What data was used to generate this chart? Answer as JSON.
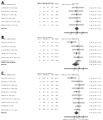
{
  "title_A": "A",
  "title_B": "B",
  "title_C": "C",
  "panel_A": {
    "studies": [
      {
        "name": "Cowling et al. 2008 [13]",
        "ev_t": 6,
        "tot_t": 103,
        "ev_c": 13,
        "tot_c": 106,
        "weight": "5.4%",
        "rr": 1.22,
        "ci_lo": 0.57,
        "ci_hi": 2.48
      },
      {
        "name": "Cowling et al. 2009 [15]",
        "ev_t": 9,
        "tot_t": 200,
        "ev_c": 10,
        "tot_c": 199,
        "weight": "4.4%",
        "rr": 0.93,
        "ci_lo": 0.37,
        "ci_hi": 2.33
      },
      {
        "name": "Larson et al. 2010 [16]",
        "ev_t": 17,
        "tot_t": 226,
        "ev_c": 17,
        "tot_c": 225,
        "weight": "8.3%",
        "rr": 1.0,
        "ci_lo": 0.52,
        "ci_hi": 1.92
      },
      {
        "name": "Patel et al. 2012 [18]",
        "ev_t": 11,
        "tot_t": 144,
        "ev_c": 14,
        "tot_c": 138,
        "weight": "6.7%",
        "rr": 0.75,
        "ci_lo": 0.36,
        "ci_hi": 1.57
      },
      {
        "name": "Simmerman et al. 2011 [19]",
        "ev_t": 45,
        "tot_t": 334,
        "ev_c": 39,
        "tot_c": 335,
        "weight": "19.2%",
        "rr": 1.16,
        "ci_lo": 0.77,
        "ci_hi": 1.73
      },
      {
        "name": "Stebbins et al. 2011 [14]",
        "ev_t": 9,
        "tot_t": 144,
        "ev_c": 9,
        "tot_c": 145,
        "weight": "4.4%",
        "rr": 1.01,
        "ci_lo": 0.4,
        "ci_hi": 2.54
      },
      {
        "name": "Pooled",
        "rr": 1.02,
        "ci_lo": 0.79,
        "ci_hi": 1.31,
        "weight": "100%",
        "is_pooled": true
      }
    ],
    "xticks": [
      0.5,
      1.0,
      2.0
    ],
    "xlim_lo": 0.2,
    "xlim_hi": 4.0
  },
  "panel_B": {
    "studies": [
      {
        "name": "Aiello et al. 2012 [20]",
        "ev_t": 17,
        "tot_t": 1441,
        "ev_c": 50,
        "tot_c": 1467,
        "weight": "28.1%",
        "rr": 0.35,
        "ci_lo": 0.17,
        "ci_hi": 0.72
      },
      {
        "name": "Rabie et al. 2012 [13]",
        "ev_t": 8,
        "tot_t": 1050,
        "ev_c": 10,
        "tot_c": 1050,
        "weight": "9.3%",
        "rr": 0.8,
        "ci_lo": 0.32,
        "ci_hi": 2.02
      },
      {
        "name": "Cowling et al. 2009 [15]",
        "ev_t": 9,
        "tot_t": 200,
        "ev_c": 10,
        "tot_c": 199,
        "weight": "10.4%",
        "rr": 0.9,
        "ci_lo": 0.38,
        "ci_hi": 2.14
      },
      {
        "name": "Larson et al. 2010 [16]",
        "ev_t": 24,
        "tot_t": 424,
        "ev_c": 32,
        "tot_c": 423,
        "weight": "29.3%",
        "rr": 0.75,
        "ci_lo": 0.45,
        "ci_hi": 1.24
      },
      {
        "name": "Simmerman et al. 2011 [19]",
        "ev_t": 13,
        "tot_t": 201,
        "ev_c": 14,
        "tot_c": 200,
        "weight": "13.0%",
        "rr": 0.92,
        "ci_lo": 0.44,
        "ci_hi": 1.93
      },
      {
        "name": "Barwise et al. 2011",
        "ev_t": 36,
        "tot_t": 301,
        "ev_c": 39,
        "tot_c": 301,
        "weight": "9.9%",
        "rr": 0.92,
        "ci_lo": 0.6,
        "ci_hi": 1.42
      },
      {
        "name": "Pooled",
        "rr": 0.62,
        "ci_lo": 0.36,
        "ci_hi": 1.06,
        "weight": "100%",
        "is_pooled": true
      }
    ],
    "xticks": [
      0.5,
      1.0,
      2.0
    ],
    "xlim_lo": 0.1,
    "xlim_hi": 4.0,
    "fixed_effect": true,
    "fixed_rr": 0.71,
    "fixed_lo": 0.55,
    "fixed_hi": 0.93
  },
  "panel_C": {
    "studies": [
      {
        "name": "Aiello et al. 2012 [20]",
        "ev_t": 17,
        "tot_t": 1441,
        "ev_c": 50,
        "tot_c": 1467,
        "weight": "17.2%",
        "rr": 0.35,
        "ci_lo": 0.17,
        "ci_hi": 0.72
      },
      {
        "name": "Rabie et al. 2012 [13]",
        "ev_t": 8,
        "tot_t": 1050,
        "ev_c": 10,
        "tot_c": 1050,
        "weight": "5.9%",
        "rr": 0.8,
        "ci_lo": 0.32,
        "ci_hi": 2.02
      },
      {
        "name": "Cowling et al. 2008 [13]",
        "ev_t": 6,
        "tot_t": 103,
        "ev_c": 13,
        "tot_c": 106,
        "weight": "3.5%",
        "rr": 1.22,
        "ci_lo": 0.57,
        "ci_hi": 2.48
      },
      {
        "name": "Cowling et al. 2009 [15]",
        "ev_t": 9,
        "tot_t": 200,
        "ev_c": 10,
        "tot_c": 199,
        "weight": "6.5%",
        "rr": 0.9,
        "ci_lo": 0.38,
        "ci_hi": 2.14
      },
      {
        "name": "Larson et al. 2010 [16]",
        "ev_t": 24,
        "tot_t": 424,
        "ev_c": 32,
        "tot_c": 423,
        "weight": "18.5%",
        "rr": 0.75,
        "ci_lo": 0.45,
        "ci_hi": 1.24
      },
      {
        "name": "Patel et al. 2012 [18]",
        "ev_t": 11,
        "tot_t": 144,
        "ev_c": 14,
        "tot_c": 138,
        "weight": "4.3%",
        "rr": 0.75,
        "ci_lo": 0.36,
        "ci_hi": 1.57
      },
      {
        "name": "Simmerman et al. 2011 [19]",
        "ev_t": 13,
        "tot_t": 201,
        "ev_c": 14,
        "tot_c": 200,
        "weight": "8.2%",
        "rr": 0.92,
        "ci_lo": 0.44,
        "ci_hi": 1.93
      },
      {
        "name": "Stebbins et al. 2011 [14]",
        "ev_t": 9,
        "tot_t": 144,
        "ev_c": 9,
        "tot_c": 145,
        "weight": "2.8%",
        "rr": 1.01,
        "ci_lo": 0.4,
        "ci_hi": 2.54
      },
      {
        "name": "Barwise et al. 2011",
        "ev_t": 36,
        "tot_t": 301,
        "ev_c": 39,
        "tot_c": 301,
        "weight": "6.3%",
        "rr": 0.92,
        "ci_lo": 0.6,
        "ci_hi": 1.42
      },
      {
        "name": "Takhani et al. 2011 [17]",
        "ev_t": 23,
        "tot_t": 144,
        "ev_c": 28,
        "tot_c": 145,
        "weight": "12.7%",
        "rr": 0.83,
        "ci_lo": 0.5,
        "ci_hi": 1.37
      },
      {
        "name": "Pooled",
        "rr": 0.71,
        "ci_lo": 0.52,
        "ci_hi": 0.97,
        "weight": "100%",
        "is_pooled": true
      }
    ],
    "xticks": [
      0.5,
      1.0,
      2.0
    ],
    "xlim_lo": 0.1,
    "xlim_hi": 4.0
  },
  "col_headers": [
    "Author (reference)",
    "Events",
    "Total",
    "Events",
    "Total",
    "Weight",
    "Risk ratio (95% CI)"
  ],
  "col_header2": [
    "Hand Hygiene",
    "",
    "",
    "Control",
    "",
    "",
    ""
  ],
  "xlabel": "Favours hand hygiene        Favours control"
}
